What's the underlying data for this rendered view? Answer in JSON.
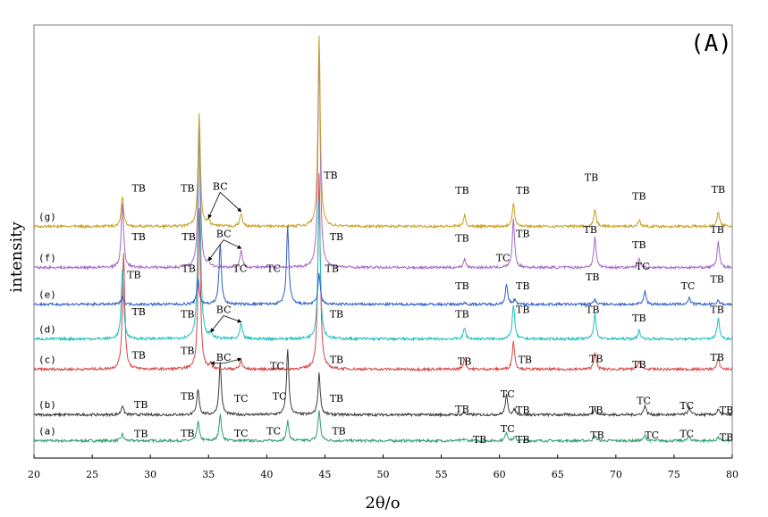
{
  "chart_data": {
    "type": "line",
    "panel_label": "(A)",
    "xlabel": "2θ/o",
    "ylabel": "intensity",
    "xlim": [
      20,
      80
    ],
    "x_ticks": [
      "20",
      "25",
      "30",
      "35",
      "40",
      "45",
      "50",
      "55",
      "60",
      "65",
      "70",
      "75",
      "80"
    ],
    "grid": false,
    "legend": "none",
    "series": [
      {
        "name": "(a)",
        "color": "#2e9e6e",
        "baseline": 0.04,
        "peaks": [
          [
            27.6,
            0.015
          ],
          [
            34.1,
            0.045
          ],
          [
            36.0,
            0.06
          ],
          [
            41.8,
            0.045
          ],
          [
            44.5,
            0.07
          ],
          [
            57.0,
            0.004
          ],
          [
            60.6,
            0.02
          ],
          [
            61.3,
            0.008
          ],
          [
            68.2,
            0.012
          ],
          [
            72.5,
            0.012
          ],
          [
            76.3,
            0.01
          ],
          [
            78.8,
            0.008
          ]
        ]
      },
      {
        "name": "(b)",
        "color": "#3c3c3c",
        "baseline": 0.1,
        "peaks": [
          [
            27.6,
            0.022
          ],
          [
            34.1,
            0.06
          ],
          [
            36.0,
            0.12
          ],
          [
            41.8,
            0.15
          ],
          [
            44.5,
            0.095
          ],
          [
            57.0,
            0.005
          ],
          [
            60.6,
            0.045
          ],
          [
            61.3,
            0.012
          ],
          [
            68.2,
            0.015
          ],
          [
            72.5,
            0.022
          ],
          [
            76.3,
            0.018
          ],
          [
            78.8,
            0.012
          ]
        ]
      },
      {
        "name": "(c)",
        "color": "#d64545",
        "baseline": 0.205,
        "peaks": [
          [
            27.7,
            0.27
          ],
          [
            34.2,
            0.37
          ],
          [
            35.2,
            0.01
          ],
          [
            37.8,
            0.02
          ],
          [
            44.5,
            0.45
          ],
          [
            57.0,
            0.025
          ],
          [
            61.2,
            0.065
          ],
          [
            68.2,
            0.04
          ],
          [
            72.0,
            0.02
          ],
          [
            78.8,
            0.025
          ]
        ]
      },
      {
        "name": "(d)",
        "color": "#20c0c0",
        "baseline": 0.275,
        "peaks": [
          [
            27.6,
            0.16
          ],
          [
            34.2,
            0.49
          ],
          [
            35.2,
            0.012
          ],
          [
            37.8,
            0.035
          ],
          [
            44.5,
            0.32
          ],
          [
            57.0,
            0.025
          ],
          [
            61.2,
            0.08
          ],
          [
            68.2,
            0.06
          ],
          [
            72.0,
            0.02
          ],
          [
            78.8,
            0.05
          ]
        ]
      },
      {
        "name": "(e)",
        "color": "#2e5fc4",
        "baseline": 0.355,
        "peaks": [
          [
            27.6,
            0.02
          ],
          [
            34.1,
            0.06
          ],
          [
            36.0,
            0.14
          ],
          [
            41.8,
            0.18
          ],
          [
            44.5,
            0.07
          ],
          [
            57.0,
            0.004
          ],
          [
            60.6,
            0.045
          ],
          [
            61.3,
            0.01
          ],
          [
            68.2,
            0.012
          ],
          [
            72.5,
            0.03
          ],
          [
            76.3,
            0.015
          ],
          [
            78.8,
            0.01
          ]
        ]
      },
      {
        "name": "(f)",
        "color": "#a46ac8",
        "baseline": 0.44,
        "peaks": [
          [
            27.6,
            0.15
          ],
          [
            34.2,
            0.34
          ],
          [
            35.0,
            0.012
          ],
          [
            37.8,
            0.04
          ],
          [
            44.5,
            0.5
          ],
          [
            57.0,
            0.02
          ],
          [
            61.2,
            0.11
          ],
          [
            68.2,
            0.07
          ],
          [
            72.0,
            0.02
          ],
          [
            78.8,
            0.06
          ]
        ]
      },
      {
        "name": "(g)",
        "color": "#c8a020",
        "baseline": 0.535,
        "peaks": [
          [
            27.6,
            0.07
          ],
          [
            34.2,
            0.26
          ],
          [
            35.0,
            0.015
          ],
          [
            37.8,
            0.03
          ],
          [
            44.5,
            0.44
          ],
          [
            57.0,
            0.025
          ],
          [
            61.2,
            0.055
          ],
          [
            68.2,
            0.04
          ],
          [
            72.0,
            0.015
          ],
          [
            78.8,
            0.035
          ]
        ]
      }
    ],
    "annotations": [
      {
        "text": "TB",
        "x": 29.0,
        "y": 0.615
      },
      {
        "text": "TB",
        "x": 33.2,
        "y": 0.615
      },
      {
        "text": "BC",
        "x": 36.0,
        "y": 0.62
      },
      {
        "text": "TB",
        "x": 45.5,
        "y": 0.645
      },
      {
        "text": "TB",
        "x": 56.8,
        "y": 0.61
      },
      {
        "text": "TB",
        "x": 62.0,
        "y": 0.61
      },
      {
        "text": "TB",
        "x": 67.9,
        "y": 0.64
      },
      {
        "text": "TB",
        "x": 72.0,
        "y": 0.597
      },
      {
        "text": "TB",
        "x": 78.8,
        "y": 0.612
      },
      {
        "text": "TB",
        "x": 29.0,
        "y": 0.503
      },
      {
        "text": "TB",
        "x": 33.3,
        "y": 0.503
      },
      {
        "text": "BC",
        "x": 36.3,
        "y": 0.51
      },
      {
        "text": "TB",
        "x": 46.0,
        "y": 0.503
      },
      {
        "text": "TB",
        "x": 56.8,
        "y": 0.5
      },
      {
        "text": "TB",
        "x": 62.0,
        "y": 0.51
      },
      {
        "text": "TB",
        "x": 67.8,
        "y": 0.52
      },
      {
        "text": "TB",
        "x": 72.0,
        "y": 0.485
      },
      {
        "text": "TB",
        "x": 78.7,
        "y": 0.52
      },
      {
        "text": "TB",
        "x": 28.6,
        "y": 0.415
      },
      {
        "text": "TB",
        "x": 33.3,
        "y": 0.43
      },
      {
        "text": "TC",
        "x": 37.7,
        "y": 0.43
      },
      {
        "text": "TC",
        "x": 40.6,
        "y": 0.43
      },
      {
        "text": "TB",
        "x": 45.6,
        "y": 0.43
      },
      {
        "text": "TB",
        "x": 56.8,
        "y": 0.39
      },
      {
        "text": "TC",
        "x": 60.3,
        "y": 0.455
      },
      {
        "text": "TB",
        "x": 62.0,
        "y": 0.39
      },
      {
        "text": "TB",
        "x": 68.0,
        "y": 0.41
      },
      {
        "text": "TC",
        "x": 72.3,
        "y": 0.435
      },
      {
        "text": "TC",
        "x": 76.2,
        "y": 0.39
      },
      {
        "text": "TB",
        "x": 78.7,
        "y": 0.405
      },
      {
        "text": "TB",
        "x": 29.0,
        "y": 0.33
      },
      {
        "text": "TB",
        "x": 33.2,
        "y": 0.325
      },
      {
        "text": "BC",
        "x": 36.3,
        "y": 0.335
      },
      {
        "text": "TB",
        "x": 46.0,
        "y": 0.325
      },
      {
        "text": "TB",
        "x": 56.8,
        "y": 0.325
      },
      {
        "text": "TB",
        "x": 62.0,
        "y": 0.335
      },
      {
        "text": "TB",
        "x": 68.0,
        "y": 0.335
      },
      {
        "text": "TB",
        "x": 72.0,
        "y": 0.315
      },
      {
        "text": "TB",
        "x": 78.7,
        "y": 0.335
      },
      {
        "text": "TB",
        "x": 29.0,
        "y": 0.23
      },
      {
        "text": "TB",
        "x": 33.2,
        "y": 0.24
      },
      {
        "text": "BC",
        "x": 36.3,
        "y": 0.225
      },
      {
        "text": "TC",
        "x": 40.9,
        "y": 0.205
      },
      {
        "text": "TB",
        "x": 46.0,
        "y": 0.22
      },
      {
        "text": "TB",
        "x": 57.0,
        "y": 0.215
      },
      {
        "text": "TB",
        "x": 62.2,
        "y": 0.22
      },
      {
        "text": "TB",
        "x": 68.3,
        "y": 0.222
      },
      {
        "text": "TB",
        "x": 72.0,
        "y": 0.208
      },
      {
        "text": "TB",
        "x": 78.7,
        "y": 0.225
      },
      {
        "text": "TB",
        "x": 29.2,
        "y": 0.115
      },
      {
        "text": "TB",
        "x": 33.2,
        "y": 0.135
      },
      {
        "text": "TC",
        "x": 37.8,
        "y": 0.13
      },
      {
        "text": "TC",
        "x": 41.1,
        "y": 0.135
      },
      {
        "text": "TB",
        "x": 46.0,
        "y": 0.13
      },
      {
        "text": "TB",
        "x": 56.8,
        "y": 0.105
      },
      {
        "text": "TC",
        "x": 60.7,
        "y": 0.14
      },
      {
        "text": "TB",
        "x": 62.0,
        "y": 0.103
      },
      {
        "text": "TB",
        "x": 68.3,
        "y": 0.103
      },
      {
        "text": "TC",
        "x": 72.4,
        "y": 0.125
      },
      {
        "text": "TC",
        "x": 76.1,
        "y": 0.113
      },
      {
        "text": "TB",
        "x": 79.5,
        "y": 0.103
      },
      {
        "text": "TB",
        "x": 29.2,
        "y": 0.048
      },
      {
        "text": "TB",
        "x": 33.2,
        "y": 0.05
      },
      {
        "text": "TC",
        "x": 37.8,
        "y": 0.05
      },
      {
        "text": "TC",
        "x": 40.6,
        "y": 0.055
      },
      {
        "text": "TB",
        "x": 46.2,
        "y": 0.055
      },
      {
        "text": "TB",
        "x": 58.3,
        "y": 0.035
      },
      {
        "text": "TC",
        "x": 60.7,
        "y": 0.06
      },
      {
        "text": "TB",
        "x": 62.0,
        "y": 0.035
      },
      {
        "text": "TB",
        "x": 68.4,
        "y": 0.045
      },
      {
        "text": "TC",
        "x": 73.1,
        "y": 0.045
      },
      {
        "text": "TC",
        "x": 76.1,
        "y": 0.048
      },
      {
        "text": "TB",
        "x": 79.5,
        "y": 0.04
      }
    ],
    "bc_arrows": [
      {
        "series": "(c)",
        "label_x": 36.3,
        "label_y": 0.225,
        "targets": [
          [
            35.2,
            0.215
          ],
          [
            37.8,
            0.225
          ]
        ]
      },
      {
        "series": "(d)",
        "label_x": 36.3,
        "label_y": 0.335,
        "targets": [
          [
            35.2,
            0.287
          ],
          [
            37.8,
            0.31
          ]
        ]
      },
      {
        "series": "(f)",
        "label_x": 36.3,
        "label_y": 0.51,
        "targets": [
          [
            35.0,
            0.452
          ],
          [
            37.8,
            0.48
          ]
        ]
      },
      {
        "series": "(g)",
        "label_x": 36.0,
        "label_y": 0.62,
        "targets": [
          [
            35.0,
            0.55
          ],
          [
            37.8,
            0.565
          ]
        ]
      }
    ]
  }
}
